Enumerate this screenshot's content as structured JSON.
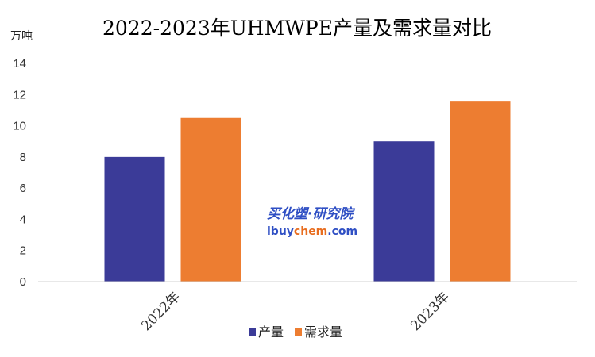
{
  "chart_data": {
    "type": "bar",
    "title": "2022-2023年UHMWPE产量及需求量对比",
    "unit_label": "万吨",
    "categories": [
      "2022年",
      "2023年"
    ],
    "series": [
      {
        "name": "产量",
        "values": [
          8.0,
          9.0
        ],
        "color": "#3b3b98"
      },
      {
        "name": "需求量",
        "values": [
          10.5,
          11.6
        ],
        "color": "#ed7d31"
      }
    ],
    "ylim": [
      0,
      14
    ],
    "y_ticks": [
      0,
      2,
      4,
      6,
      8,
      10,
      12,
      14
    ],
    "grid": false,
    "legend_position": "bottom"
  },
  "watermark": {
    "line1": "买化塑·研究院",
    "line2_a": "ibuy",
    "line2_b": "chem",
    "line2_c": ".com"
  }
}
